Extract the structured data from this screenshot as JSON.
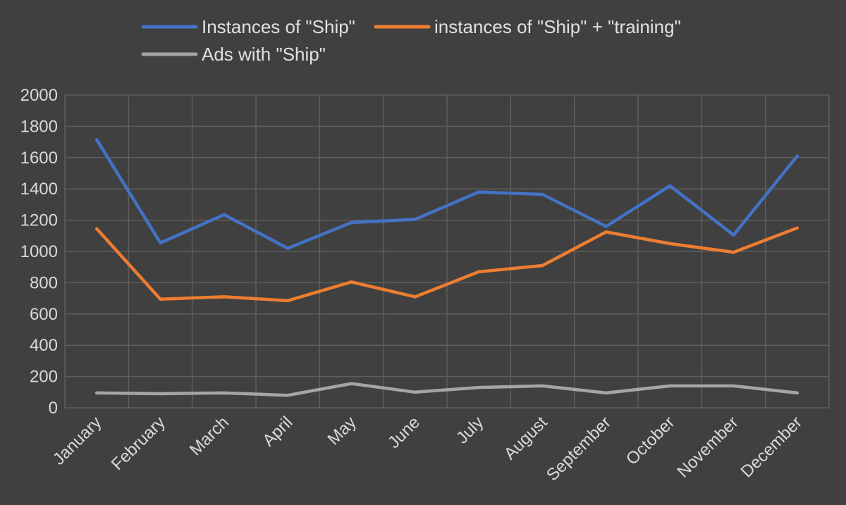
{
  "chart_data": {
    "type": "line",
    "categories": [
      "January",
      "February",
      "March",
      "April",
      "May",
      "June",
      "July",
      "August",
      "September",
      "October",
      "November",
      "December"
    ],
    "series": [
      {
        "name": "Instances of \"Ship\"",
        "color": "#4472c4",
        "values": [
          1715,
          1055,
          1235,
          1020,
          1185,
          1205,
          1380,
          1365,
          1160,
          1420,
          1105,
          1610
        ]
      },
      {
        "name": "instances of \"Ship\" + \"training\"",
        "color": "#ed7d31",
        "values": [
          1145,
          695,
          710,
          685,
          805,
          710,
          870,
          910,
          1125,
          1050,
          995,
          1150
        ]
      },
      {
        "name": "Ads with \"Ship\"",
        "color": "#a5a5a5",
        "values": [
          95,
          90,
          95,
          80,
          155,
          100,
          130,
          140,
          95,
          140,
          140,
          95
        ]
      }
    ],
    "ylim": [
      0,
      2000
    ],
    "yticks": [
      0,
      200,
      400,
      600,
      800,
      1000,
      1200,
      1400,
      1600,
      1800,
      2000
    ],
    "grid": true,
    "legend_position": "top"
  }
}
